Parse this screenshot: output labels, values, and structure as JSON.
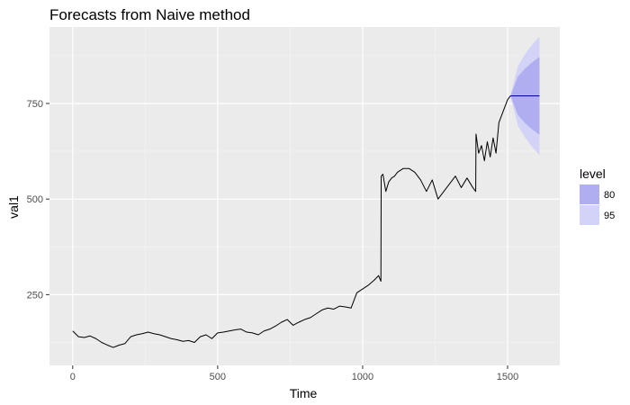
{
  "chart_data": {
    "type": "line",
    "title": "Forecasts from Naive method",
    "xlabel": "Time",
    "ylabel": "val1",
    "xlim": [
      -80,
      1680
    ],
    "ylim": [
      65,
      950
    ],
    "x_ticks": [
      0,
      500,
      1000,
      1500
    ],
    "x_tick_labels": [
      "0",
      "500",
      "1000",
      "1500"
    ],
    "y_ticks": [
      250,
      500,
      750
    ],
    "y_tick_labels": [
      "250",
      "500",
      "750"
    ],
    "grid": true,
    "background": "#ebebeb",
    "series": [
      {
        "role": "history",
        "color": "#000000",
        "x": [
          0,
          20,
          40,
          60,
          80,
          100,
          120,
          140,
          160,
          180,
          200,
          220,
          240,
          260,
          280,
          300,
          320,
          340,
          360,
          380,
          400,
          420,
          440,
          460,
          480,
          500,
          520,
          540,
          560,
          580,
          600,
          620,
          640,
          660,
          680,
          700,
          720,
          740,
          760,
          780,
          800,
          820,
          840,
          860,
          880,
          900,
          920,
          940,
          960,
          980,
          1000,
          1020,
          1040,
          1055,
          1063,
          1064,
          1070,
          1080,
          1090,
          1100,
          1110,
          1120,
          1140,
          1160,
          1180,
          1200,
          1220,
          1240,
          1260,
          1280,
          1300,
          1320,
          1340,
          1360,
          1380,
          1390,
          1391,
          1400,
          1410,
          1420,
          1430,
          1440,
          1450,
          1460,
          1470,
          1480,
          1490,
          1500,
          1510
        ],
        "y": [
          155,
          140,
          138,
          142,
          135,
          125,
          118,
          112,
          118,
          122,
          140,
          145,
          148,
          152,
          148,
          145,
          140,
          135,
          132,
          128,
          130,
          125,
          140,
          145,
          135,
          150,
          152,
          155,
          158,
          160,
          152,
          150,
          145,
          155,
          160,
          168,
          178,
          185,
          170,
          178,
          185,
          190,
          200,
          210,
          215,
          212,
          220,
          218,
          215,
          255,
          265,
          275,
          288,
          300,
          285,
          560,
          565,
          520,
          545,
          555,
          560,
          570,
          580,
          580,
          570,
          550,
          520,
          550,
          500,
          520,
          540,
          560,
          530,
          555,
          530,
          520,
          670,
          620,
          640,
          600,
          650,
          610,
          660,
          620,
          700,
          720,
          740,
          760,
          770
        ]
      },
      {
        "role": "point-forecast",
        "color": "#0000aa",
        "x": [
          1510,
          1610
        ],
        "y": [
          770,
          770
        ]
      }
    ],
    "intervals": [
      {
        "level": "80",
        "color": "#aeaef0",
        "x": [
          1510,
          1535,
          1560,
          1585,
          1610
        ],
        "lower": [
          770,
          720,
          699,
          682,
          668
        ],
        "upper": [
          770,
          820,
          841,
          858,
          872
        ]
      },
      {
        "level": "95",
        "color": "#d3d3f7",
        "x": [
          1510,
          1535,
          1560,
          1585,
          1610
        ],
        "lower": [
          770,
          693,
          661,
          636,
          615
        ],
        "upper": [
          770,
          847,
          879,
          904,
          925
        ]
      }
    ],
    "legend": {
      "title": "level",
      "position": "right",
      "entries": [
        {
          "label": "80",
          "color": "#aeaef0"
        },
        {
          "label": "95",
          "color": "#d3d3f7"
        }
      ]
    }
  }
}
